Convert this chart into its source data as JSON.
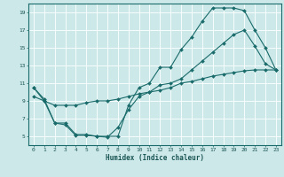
{
  "xlabel": "Humidex (Indice chaleur)",
  "bg_color": "#cde8e8",
  "grid_color": "#ffffff",
  "line_color": "#1a6b6b",
  "xlim": [
    -0.5,
    23.5
  ],
  "ylim": [
    4,
    20
  ],
  "xticks": [
    0,
    1,
    2,
    3,
    4,
    5,
    6,
    7,
    8,
    9,
    10,
    11,
    12,
    13,
    14,
    15,
    16,
    17,
    18,
    19,
    20,
    21,
    22,
    23
  ],
  "yticks": [
    5,
    7,
    9,
    11,
    13,
    15,
    17,
    19
  ],
  "s1_x": [
    0,
    1,
    2,
    3,
    4,
    5,
    6,
    7,
    8,
    9,
    10,
    11,
    12,
    13,
    14,
    15,
    16,
    17,
    18,
    19,
    20,
    21,
    22,
    23
  ],
  "s1_y": [
    10.5,
    9.2,
    6.5,
    6.5,
    5.2,
    5.2,
    5.0,
    5.0,
    5.0,
    8.5,
    10.5,
    11.0,
    12.8,
    12.8,
    14.8,
    16.2,
    18.0,
    19.5,
    19.5,
    19.5,
    19.2,
    17.0,
    15.0,
    12.5
  ],
  "s2_x": [
    0,
    1,
    2,
    3,
    4,
    5,
    6,
    7,
    8,
    9,
    10,
    11,
    12,
    13,
    14,
    15,
    16,
    17,
    18,
    19,
    20,
    21,
    22,
    23
  ],
  "s2_y": [
    10.5,
    9.0,
    6.5,
    6.3,
    5.1,
    5.1,
    5.0,
    4.9,
    6.0,
    8.0,
    9.5,
    10.0,
    10.8,
    11.0,
    11.5,
    12.5,
    13.5,
    14.5,
    15.5,
    16.5,
    17.0,
    15.2,
    13.2,
    12.5
  ],
  "s3_x": [
    0,
    1,
    2,
    3,
    4,
    5,
    6,
    7,
    8,
    9,
    10,
    11,
    12,
    13,
    14,
    15,
    16,
    17,
    18,
    19,
    20,
    21,
    22,
    23
  ],
  "s3_y": [
    9.5,
    9.0,
    8.5,
    8.5,
    8.5,
    8.8,
    9.0,
    9.0,
    9.2,
    9.5,
    9.8,
    10.0,
    10.2,
    10.5,
    11.0,
    11.2,
    11.5,
    11.8,
    12.0,
    12.2,
    12.4,
    12.5,
    12.5,
    12.5
  ]
}
